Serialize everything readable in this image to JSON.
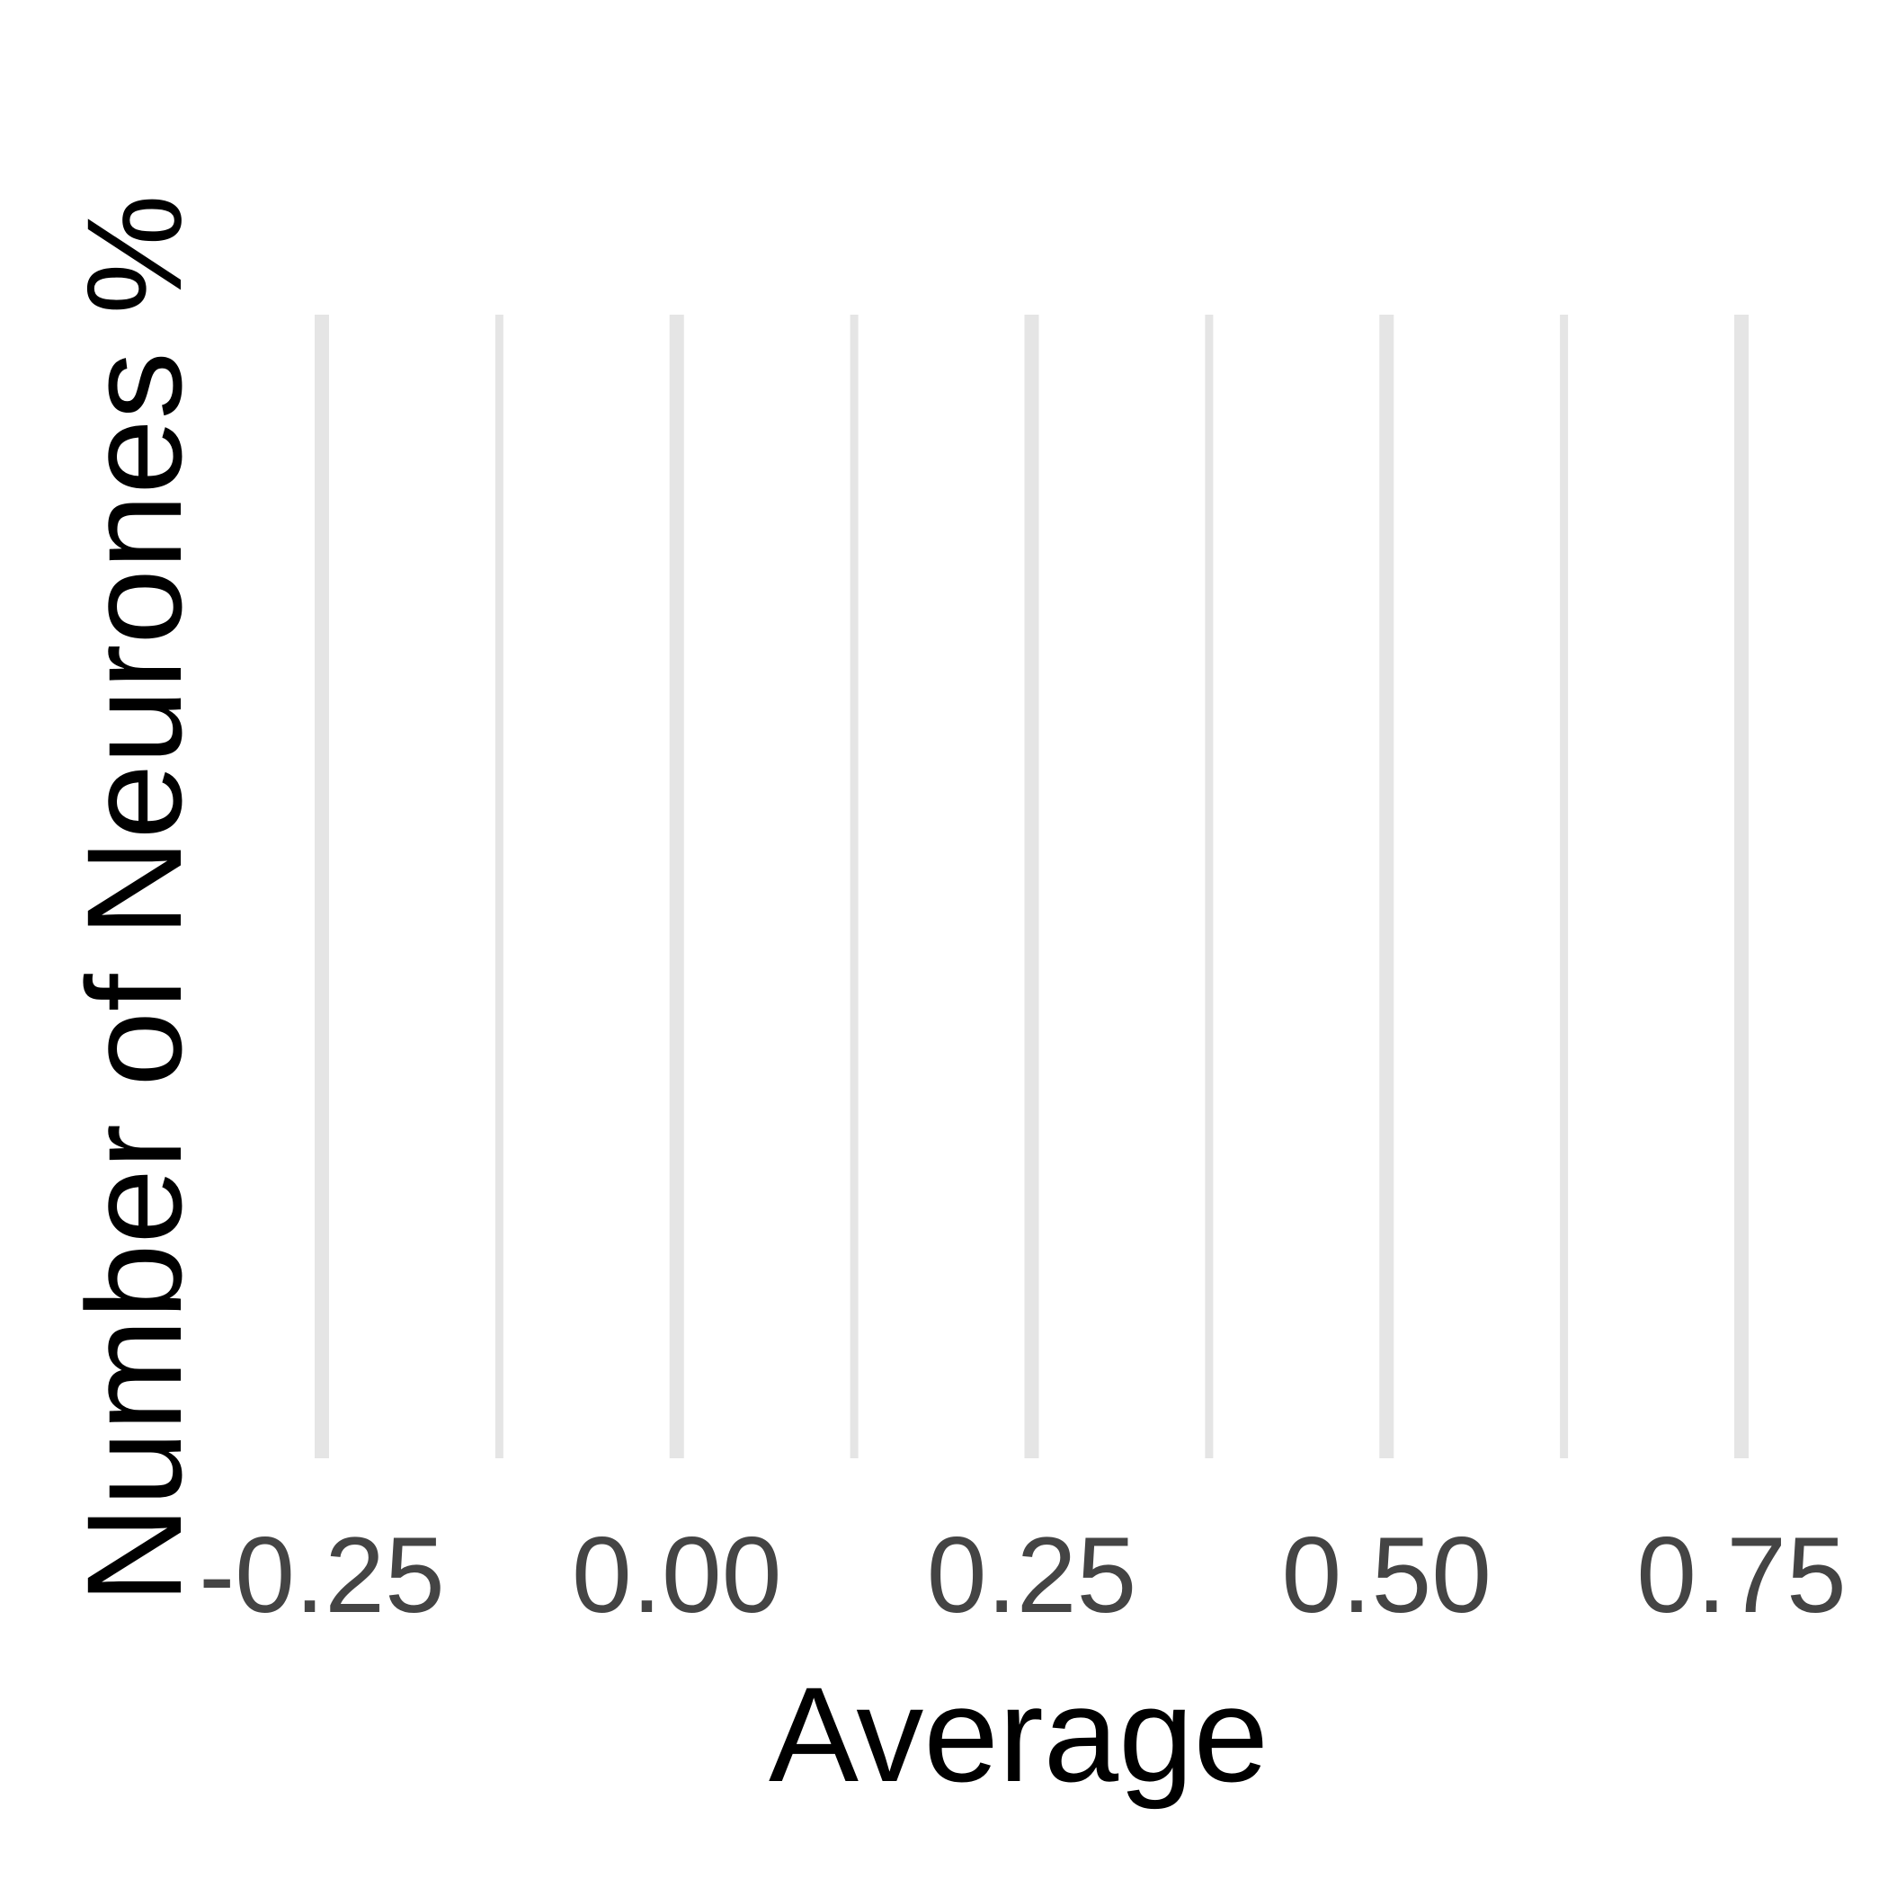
{
  "chart_data": {
    "type": "bar",
    "title": "",
    "xlabel": "Average",
    "ylabel": "Number of Neurones %",
    "xlim": [
      -0.25,
      0.75
    ],
    "x_ticks": [
      -0.25,
      0.0,
      0.25,
      0.5,
      0.75
    ],
    "x_tick_labels": [
      "-0.25",
      "0.00",
      "0.25",
      "0.50",
      "0.75"
    ],
    "x_minor_ticks": [
      -0.125,
      0.125,
      0.375,
      0.625
    ],
    "y_ticks": [],
    "series": [],
    "grid": {
      "major_x": true,
      "minor_x": true,
      "major_y": false,
      "color": "#e5e5e5"
    },
    "legend": "none"
  }
}
